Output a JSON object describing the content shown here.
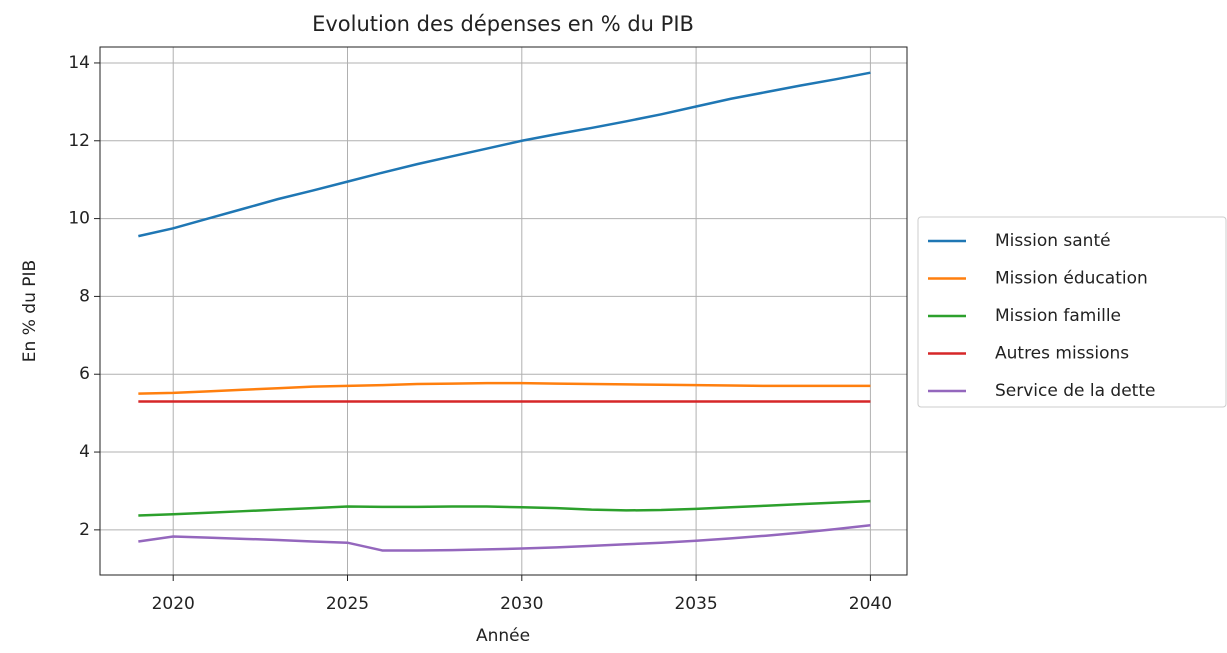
{
  "chart_data": {
    "type": "line",
    "title": "Evolution des dépenses en % du PIB",
    "x_label": "Année",
    "y_label": "En % du PIB",
    "x": [
      2019,
      2020,
      2021,
      2022,
      2023,
      2024,
      2025,
      2026,
      2027,
      2028,
      2029,
      2030,
      2031,
      2032,
      2033,
      2034,
      2035,
      2036,
      2037,
      2038,
      2039,
      2040
    ],
    "series": [
      {
        "name": "Mission santé",
        "color": "#1f77b4",
        "values": [
          9.55,
          9.75,
          10.0,
          10.25,
          10.5,
          10.72,
          10.95,
          11.18,
          11.4,
          11.6,
          11.8,
          12.0,
          12.17,
          12.33,
          12.5,
          12.68,
          12.88,
          13.08,
          13.25,
          13.42,
          13.58,
          13.75
        ]
      },
      {
        "name": "Mission éducation",
        "color": "#ff7f0e",
        "values": [
          5.5,
          5.52,
          5.56,
          5.6,
          5.64,
          5.68,
          5.7,
          5.72,
          5.75,
          5.76,
          5.77,
          5.77,
          5.76,
          5.75,
          5.74,
          5.73,
          5.72,
          5.71,
          5.7,
          5.7,
          5.7,
          5.7
        ]
      },
      {
        "name": "Mission famille",
        "color": "#2ca02c",
        "values": [
          2.37,
          2.4,
          2.44,
          2.48,
          2.52,
          2.56,
          2.6,
          2.59,
          2.59,
          2.6,
          2.6,
          2.58,
          2.56,
          2.52,
          2.5,
          2.51,
          2.54,
          2.58,
          2.62,
          2.66,
          2.7,
          2.74
        ]
      },
      {
        "name": "Autres missions",
        "color": "#d62728",
        "values": [
          5.3,
          5.3,
          5.3,
          5.3,
          5.3,
          5.3,
          5.3,
          5.3,
          5.3,
          5.3,
          5.3,
          5.3,
          5.3,
          5.3,
          5.3,
          5.3,
          5.3,
          5.3,
          5.3,
          5.3,
          5.3,
          5.3
        ]
      },
      {
        "name": "Service de la dette",
        "color": "#9467bd",
        "values": [
          1.7,
          1.83,
          1.8,
          1.77,
          1.74,
          1.7,
          1.67,
          1.47,
          1.47,
          1.48,
          1.5,
          1.52,
          1.55,
          1.59,
          1.63,
          1.67,
          1.72,
          1.78,
          1.85,
          1.93,
          2.02,
          2.12
        ]
      }
    ],
    "xlim": [
      2017.9,
      2041.05
    ],
    "xticks": [
      2020,
      2025,
      2030,
      2035,
      2040
    ],
    "ylim": [
      0.84,
      14.41
    ],
    "yticks": [
      2,
      4,
      6,
      8,
      10,
      12,
      14
    ],
    "grid": true,
    "legend": "outside right"
  }
}
